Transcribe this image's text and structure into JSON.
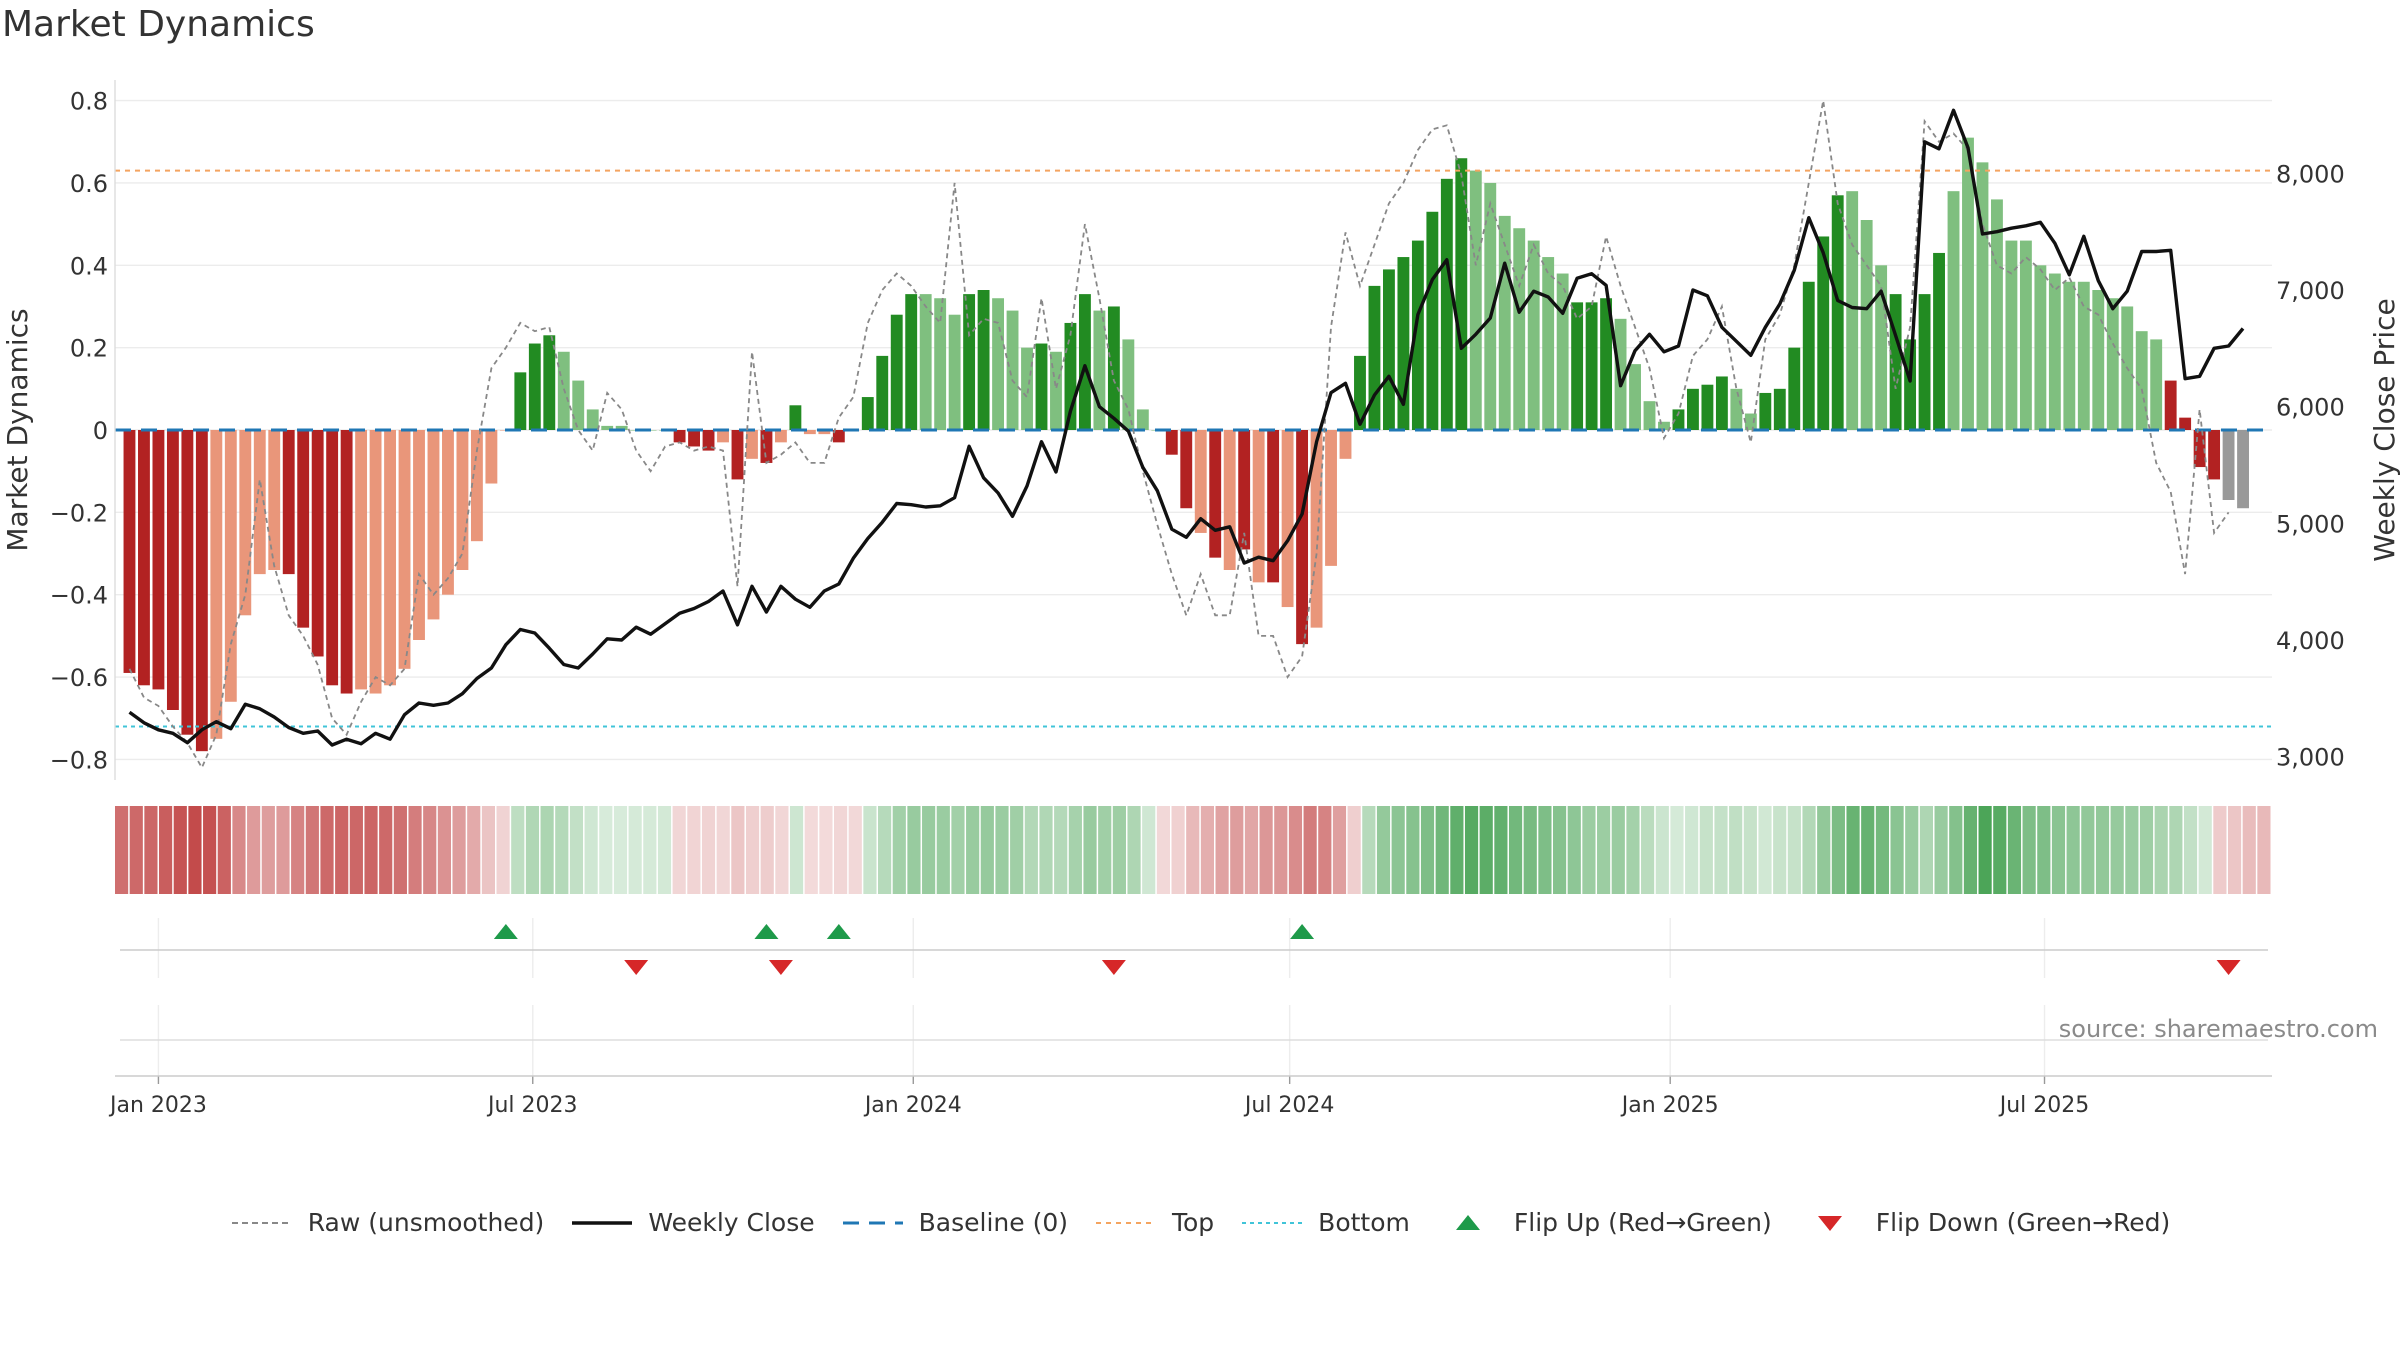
{
  "title": "Market Dynamics",
  "watermark": "source: sharemaestro.com",
  "colors": {
    "strong_green": "#228b22",
    "light_green": "#7fbf7f",
    "strong_red": "#b22222",
    "light_red": "#e9967a",
    "top_line": "#f4a460",
    "bottom_line": "#40c4d8",
    "baseline": "#1f77b4",
    "raw": "#888888",
    "close": "#111111",
    "flip_up": "#1e9a4a",
    "flip_down": "#d62728"
  },
  "legend": [
    {
      "key": "raw",
      "label": "Raw (unsmoothed)"
    },
    {
      "key": "close",
      "label": "Weekly Close"
    },
    {
      "key": "baseline",
      "label": "Baseline (0)"
    },
    {
      "key": "top",
      "label": "Top"
    },
    {
      "key": "bottom",
      "label": "Bottom"
    },
    {
      "key": "flip_up",
      "label": "Flip Up (Red→Green)"
    },
    {
      "key": "flip_down",
      "label": "Flip Down (Green→Red)"
    }
  ],
  "chart_data": {
    "type": "bar",
    "x_axis": {
      "ticks": [
        {
          "date": "2023-01-01",
          "label": "Jan 2023"
        },
        {
          "date": "2023-07-01",
          "label": "Jul 2023"
        },
        {
          "date": "2024-01-01",
          "label": "Jan 2024"
        },
        {
          "date": "2024-07-01",
          "label": "Jul 2024"
        },
        {
          "date": "2025-01-01",
          "label": "Jan 2025"
        },
        {
          "date": "2025-07-01",
          "label": "Jul 2025"
        }
      ],
      "range": [
        "2022-12-11",
        "2025-10-19"
      ]
    },
    "y_left": {
      "label": "Market Dynamics",
      "range": [
        -0.85,
        0.85
      ],
      "ticks": [
        -0.8,
        -0.6,
        -0.4,
        -0.2,
        0,
        0.2,
        0.4,
        0.6,
        0.8
      ],
      "tick_labels": [
        "−0.8",
        "−0.6",
        "−0.4",
        "−0.2",
        "0",
        "0.2",
        "0.4",
        "0.6",
        "0.8"
      ]
    },
    "y_right": {
      "label": "Weekly Close Price",
      "range": [
        2800,
        8800
      ],
      "ticks": [
        3000,
        4000,
        5000,
        6000,
        7000,
        8000
      ],
      "tick_labels": [
        "3,000",
        "4,000",
        "5,000",
        "6,000",
        "7,000",
        "8,000"
      ]
    },
    "top_level": 0.63,
    "bottom_level": -0.72,
    "start_date": "2022-12-18",
    "week_step_days": 7,
    "values": [
      -0.59,
      -0.62,
      -0.63,
      -0.68,
      -0.74,
      -0.78,
      -0.75,
      -0.66,
      -0.45,
      -0.35,
      -0.34,
      -0.35,
      -0.48,
      -0.55,
      -0.62,
      -0.64,
      -0.63,
      -0.64,
      -0.62,
      -0.58,
      -0.51,
      -0.46,
      -0.4,
      -0.34,
      -0.27,
      -0.13,
      0.0,
      0.14,
      0.21,
      0.23,
      0.19,
      0.12,
      0.05,
      0.01,
      0.01,
      0.0,
      0.0,
      0.0,
      -0.03,
      -0.04,
      -0.05,
      -0.03,
      -0.12,
      -0.07,
      -0.08,
      -0.03,
      0.06,
      -0.01,
      -0.01,
      -0.03,
      0.0,
      0.08,
      0.18,
      0.28,
      0.33,
      0.33,
      0.32,
      0.28,
      0.33,
      0.34,
      0.32,
      0.29,
      0.2,
      0.21,
      0.19,
      0.26,
      0.33,
      0.29,
      0.3,
      0.22,
      0.05,
      0.0,
      -0.06,
      -0.19,
      -0.25,
      -0.31,
      -0.34,
      -0.29,
      -0.37,
      -0.37,
      -0.43,
      -0.52,
      -0.48,
      -0.33,
      -0.07,
      0.18,
      0.35,
      0.39,
      0.42,
      0.46,
      0.53,
      0.61,
      0.66,
      0.63,
      0.6,
      0.52,
      0.49,
      0.46,
      0.42,
      0.38,
      0.31,
      0.31,
      0.32,
      0.27,
      0.16,
      0.07,
      0.02,
      0.05,
      0.1,
      0.11,
      0.13,
      0.1,
      0.04,
      0.09,
      0.1,
      0.2,
      0.36,
      0.47,
      0.57,
      0.58,
      0.51,
      0.4,
      0.33,
      0.22,
      0.33,
      0.43,
      0.58,
      0.71,
      0.65,
      0.56,
      0.46,
      0.46,
      0.4,
      0.38,
      0.36,
      0.36,
      0.34,
      0.32,
      0.3,
      0.24,
      0.22,
      0.12,
      0.03,
      -0.09,
      -0.12,
      -0.17,
      -0.19
    ],
    "bar_colors": [
      "SR",
      "SR",
      "SR",
      "SR",
      "SR",
      "SR",
      "LR",
      "LR",
      "LR",
      "LR",
      "LR",
      "SR",
      "SR",
      "SR",
      "SR",
      "SR",
      "LR",
      "LR",
      "LR",
      "LR",
      "LR",
      "LR",
      "LR",
      "LR",
      "LR",
      "LR",
      "LR",
      "SG",
      "SG",
      "SG",
      "LG",
      "LG",
      "LG",
      "LG",
      "LG",
      "LG",
      "LG",
      "LG",
      "SR",
      "SR",
      "SR",
      "LR",
      "SR",
      "LR",
      "SR",
      "LR",
      "SG",
      "LR",
      "LR",
      "SR",
      "LR",
      "SG",
      "SG",
      "SG",
      "SG",
      "LG",
      "LG",
      "LG",
      "SG",
      "SG",
      "LG",
      "LG",
      "LG",
      "SG",
      "LG",
      "SG",
      "SG",
      "LG",
      "SG",
      "LG",
      "LG",
      "LG",
      "SR",
      "SR",
      "LR",
      "SR",
      "LR",
      "SR",
      "LR",
      "SR",
      "LR",
      "SR",
      "LR",
      "LR",
      "LR",
      "SG",
      "SG",
      "SG",
      "SG",
      "SG",
      "SG",
      "SG",
      "SG",
      "LG",
      "LG",
      "LG",
      "LG",
      "LG",
      "LG",
      "LG",
      "SG",
      "SG",
      "SG",
      "LG",
      "LG",
      "LG",
      "LG",
      "SG",
      "SG",
      "SG",
      "SG",
      "LG",
      "LG",
      "SG",
      "SG",
      "SG",
      "SG",
      "SG",
      "SG",
      "LG",
      "LG",
      "LG",
      "SG",
      "SG",
      "SG",
      "SG",
      "LG",
      "LG",
      "LG",
      "LG",
      "LG",
      "LG",
      "LG",
      "LG",
      "LG",
      "LG",
      "LG",
      "LG",
      "LG",
      "LG",
      "LG",
      "SR",
      "SR",
      "SR",
      "SR"
    ],
    "raw": [
      -0.58,
      -0.65,
      -0.67,
      -0.72,
      -0.76,
      -0.82,
      -0.74,
      -0.52,
      -0.4,
      -0.12,
      -0.33,
      -0.45,
      -0.5,
      -0.57,
      -0.7,
      -0.74,
      -0.66,
      -0.6,
      -0.62,
      -0.58,
      -0.35,
      -0.4,
      -0.36,
      -0.3,
      -0.05,
      0.15,
      0.2,
      0.26,
      0.24,
      0.25,
      0.1,
      0.0,
      -0.05,
      0.09,
      0.05,
      -0.05,
      -0.1,
      -0.04,
      -0.03,
      -0.05,
      -0.04,
      -0.05,
      -0.38,
      0.19,
      -0.08,
      -0.06,
      -0.03,
      -0.08,
      -0.08,
      0.03,
      0.08,
      0.26,
      0.34,
      0.38,
      0.35,
      0.3,
      0.26,
      0.6,
      0.23,
      0.27,
      0.26,
      0.12,
      0.08,
      0.32,
      0.1,
      0.23,
      0.5,
      0.32,
      0.12,
      0.05,
      -0.1,
      -0.23,
      -0.35,
      -0.45,
      -0.35,
      -0.45,
      -0.45,
      -0.25,
      -0.5,
      -0.5,
      -0.6,
      -0.55,
      -0.3,
      0.25,
      0.48,
      0.35,
      0.45,
      0.55,
      0.6,
      0.68,
      0.73,
      0.74,
      0.62,
      0.4,
      0.55,
      0.45,
      0.35,
      0.45,
      0.38,
      0.35,
      0.27,
      0.3,
      0.47,
      0.35,
      0.25,
      0.15,
      -0.02,
      0.04,
      0.18,
      0.22,
      0.3,
      0.1,
      -0.03,
      0.22,
      0.28,
      0.4,
      0.6,
      0.8,
      0.55,
      0.45,
      0.4,
      0.35,
      0.1,
      0.25,
      0.75,
      0.7,
      0.72,
      0.68,
      0.5,
      0.4,
      0.38,
      0.42,
      0.39,
      0.34,
      0.37,
      0.3,
      0.28,
      0.21,
      0.15,
      0.1,
      -0.08,
      -0.15,
      -0.35,
      0.05,
      -0.25,
      -0.2
    ],
    "close": [
      3380,
      3290,
      3230,
      3200,
      3120,
      3230,
      3300,
      3240,
      3450,
      3410,
      3340,
      3250,
      3200,
      3220,
      3100,
      3150,
      3110,
      3200,
      3150,
      3360,
      3460,
      3440,
      3460,
      3540,
      3670,
      3760,
      3960,
      4090,
      4060,
      3930,
      3790,
      3760,
      3880,
      4010,
      4000,
      4110,
      4050,
      4140,
      4230,
      4270,
      4330,
      4420,
      4130,
      4460,
      4240,
      4460,
      4350,
      4280,
      4420,
      4480,
      4700,
      4870,
      5010,
      5170,
      5160,
      5140,
      5150,
      5220,
      5660,
      5390,
      5260,
      5060,
      5320,
      5700,
      5440,
      5960,
      6350,
      6000,
      5900,
      5790,
      5480,
      5280,
      4950,
      4880,
      5040,
      4940,
      4970,
      4660,
      4710,
      4680,
      4850,
      5080,
      5700,
      6120,
      6200,
      5850,
      6100,
      6260,
      6020,
      6790,
      7090,
      7260,
      6500,
      6620,
      6760,
      7230,
      6810,
      6990,
      6940,
      6800,
      7100,
      7140,
      7040,
      6180,
      6480,
      6620,
      6470,
      6520,
      7000,
      6950,
      6680,
      6560,
      6440,
      6680,
      6880,
      7170,
      7620,
      7320,
      6910,
      6850,
      6840,
      6990,
      6610,
      6220,
      8270,
      8210,
      8540,
      8220,
      7480,
      7500,
      7530,
      7550,
      7580,
      7400,
      7130,
      7460,
      7080,
      6840,
      6990,
      7330,
      7330,
      7340,
      6240,
      6260,
      6500,
      6520,
      6670
    ],
    "heat_strip": [
      -0.59,
      -0.62,
      -0.63,
      -0.68,
      -0.74,
      -0.78,
      -0.75,
      -0.66,
      -0.45,
      -0.35,
      -0.34,
      -0.35,
      -0.48,
      -0.55,
      -0.62,
      -0.64,
      -0.63,
      -0.64,
      -0.62,
      -0.58,
      -0.51,
      -0.46,
      -0.4,
      -0.34,
      -0.27,
      -0.13,
      -0.05,
      0.14,
      0.21,
      0.23,
      0.19,
      0.12,
      0.05,
      0.01,
      0.01,
      0.02,
      0.02,
      0.03,
      -0.03,
      -0.04,
      -0.05,
      -0.03,
      -0.12,
      -0.07,
      -0.08,
      -0.03,
      0.06,
      -0.01,
      -0.01,
      -0.03,
      -0.02,
      0.08,
      0.18,
      0.28,
      0.33,
      0.33,
      0.32,
      0.28,
      0.33,
      0.34,
      0.32,
      0.29,
      0.2,
      0.21,
      0.19,
      0.26,
      0.33,
      0.29,
      0.3,
      0.22,
      0.05,
      -0.02,
      -0.06,
      -0.19,
      -0.25,
      -0.31,
      -0.34,
      -0.29,
      -0.37,
      -0.37,
      -0.43,
      -0.52,
      -0.48,
      -0.33,
      -0.07,
      0.18,
      0.35,
      0.39,
      0.42,
      0.46,
      0.53,
      0.61,
      0.66,
      0.63,
      0.6,
      0.52,
      0.49,
      0.46,
      0.42,
      0.38,
      0.31,
      0.31,
      0.32,
      0.27,
      0.16,
      0.07,
      0.02,
      0.05,
      0.1,
      0.11,
      0.13,
      0.1,
      0.04,
      0.09,
      0.1,
      0.2,
      0.36,
      0.47,
      0.57,
      0.58,
      0.51,
      0.4,
      0.33,
      0.22,
      0.33,
      0.43,
      0.58,
      0.71,
      0.65,
      0.56,
      0.46,
      0.46,
      0.4,
      0.38,
      0.36,
      0.36,
      0.34,
      0.32,
      0.3,
      0.24,
      0.22,
      0.12,
      0.03,
      -0.09,
      -0.12,
      -0.17,
      -0.19
    ],
    "flip_up_dates": [
      "2023-06-18",
      "2023-10-22",
      "2023-11-26",
      "2024-07-07"
    ],
    "flip_down_dates": [
      "2023-08-20",
      "2023-10-29",
      "2024-04-07",
      "2025-09-28"
    ]
  }
}
